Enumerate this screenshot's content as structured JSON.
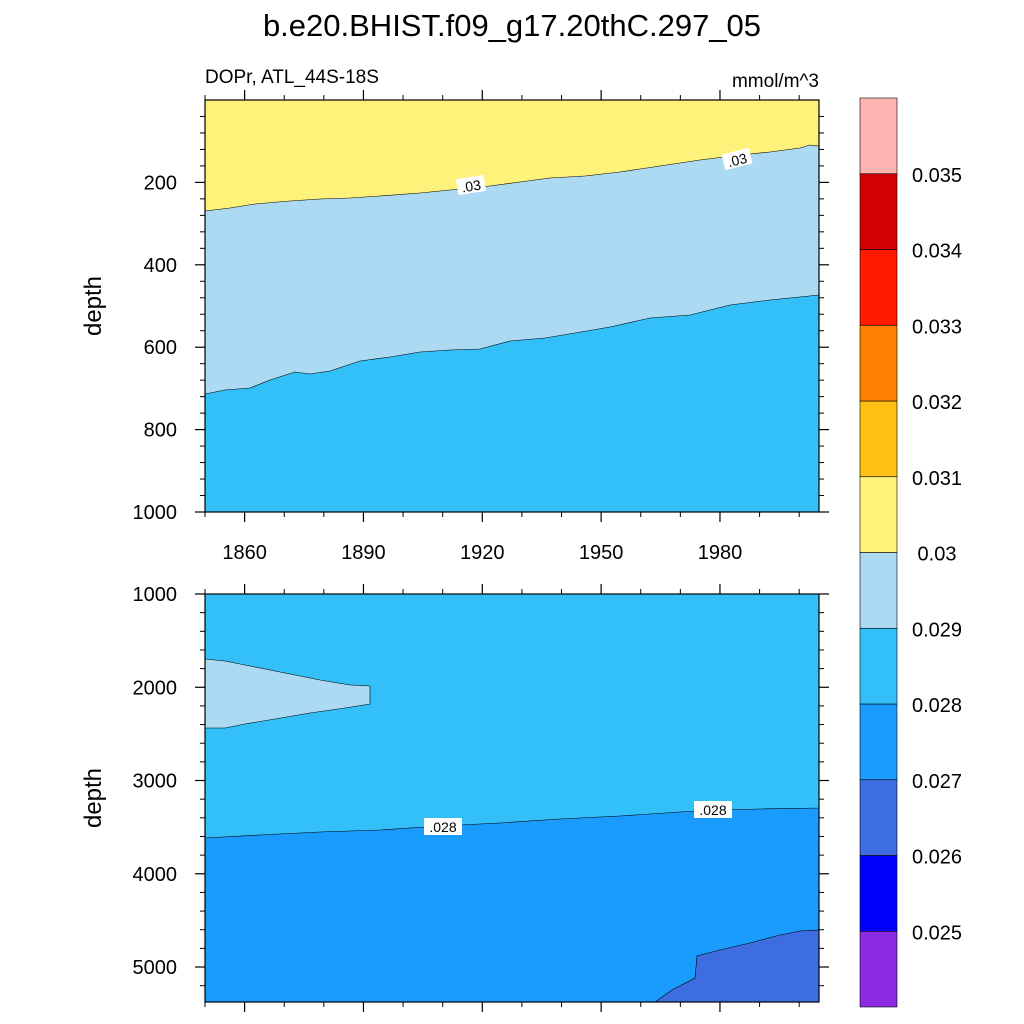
{
  "title": "b.e20.BHIST.f09_g17.20thC.297_05",
  "chart_data": {
    "type": "contour",
    "variable_label": "DOPr, ATL_44S-18S",
    "units": "mmol/m^3",
    "ylabel": "depth",
    "x_ticks": [
      "1860",
      "1890",
      "1920",
      "1950",
      "1980"
    ],
    "x_tick_values": [
      1860,
      1890,
      1920,
      1950,
      1980
    ],
    "xlim": [
      1850,
      2005
    ],
    "colorbar": {
      "labels": [
        "0.025",
        "0.026",
        "0.027",
        "0.028",
        "0.029",
        "0.03",
        "0.031",
        "0.032",
        "0.033",
        "0.034",
        "0.035"
      ],
      "levels": [
        0.025,
        0.026,
        0.027,
        0.028,
        0.029,
        0.03,
        0.031,
        0.032,
        0.033,
        0.034,
        0.035
      ],
      "colors": [
        "#8a2be2",
        "#0000ff",
        "#3e6de2",
        "#1a9cff",
        "#33bff8",
        "#acdaf2",
        "#fff27a",
        "#ffc214",
        "#ff8000",
        "#ff1a00",
        "#d20000",
        "#ffb3b3"
      ]
    },
    "panels": [
      {
        "name": "upper",
        "y_ticks": [
          "200",
          "400",
          "600",
          "800",
          "1000"
        ],
        "y_tick_values": [
          200,
          400,
          600,
          800,
          1000
        ],
        "ylim": [
          0,
          1000
        ],
        "contour_labels": [
          ".03",
          ".03"
        ],
        "regions": [
          {
            "level": "0.030-0.031",
            "color": "#fff27a"
          },
          {
            "level": "0.029-0.030",
            "color": "#acdaf2"
          },
          {
            "level": "0.028-0.029",
            "color": "#33bff8"
          }
        ],
        "contour_0_030_depth": [
          [
            1850,
            268
          ],
          [
            1870,
            255
          ],
          [
            1900,
            237
          ],
          [
            1920,
            212
          ],
          [
            1950,
            193
          ],
          [
            1980,
            160
          ],
          [
            2000,
            118
          ],
          [
            2005,
            115
          ]
        ],
        "contour_0_029_depth": [
          [
            1850,
            712
          ],
          [
            1870,
            668
          ],
          [
            1900,
            633
          ],
          [
            1920,
            600
          ],
          [
            1950,
            547
          ],
          [
            1980,
            500
          ],
          [
            2005,
            477
          ]
        ]
      },
      {
        "name": "lower",
        "y_ticks": [
          "1000",
          "2000",
          "3000",
          "4000",
          "5000"
        ],
        "y_tick_values": [
          1000,
          2000,
          3000,
          4000,
          5000
        ],
        "ylim": [
          1000,
          5375
        ],
        "contour_labels": [
          ".028",
          ".028"
        ],
        "regions": [
          {
            "level": "0.028-0.029",
            "color": "#33bff8"
          },
          {
            "level": "0.029-0.030",
            "color": "#acdaf2"
          },
          {
            "level": "0.027-0.028",
            "color": "#1a9cff"
          },
          {
            "level": "0.026-0.027",
            "color": "#3e6de2"
          }
        ],
        "contour_0_028_depth": [
          [
            1850,
            3620
          ],
          [
            1880,
            3550
          ],
          [
            1920,
            3480
          ],
          [
            1950,
            3420
          ],
          [
            1980,
            3330
          ],
          [
            2005,
            3300
          ]
        ]
      }
    ]
  }
}
